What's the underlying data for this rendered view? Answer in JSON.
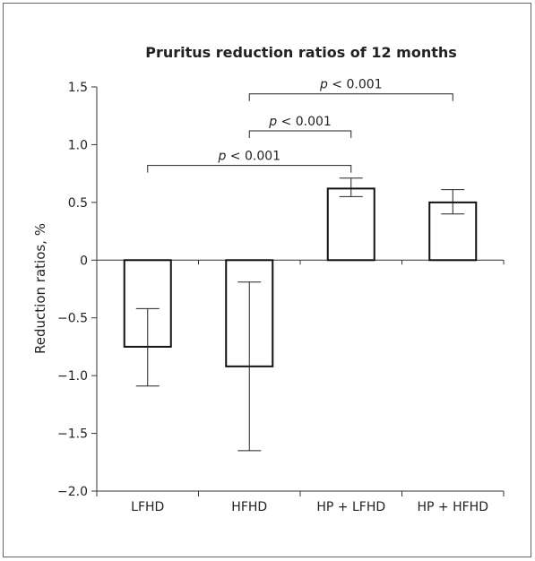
{
  "chart_data": {
    "type": "bar",
    "title": "Pruritus reduction ratios of 12 months",
    "xlabel": "",
    "ylabel": "Reduction ratios, %",
    "ylim": [
      -2.0,
      1.5
    ],
    "yticks": [
      1.5,
      1.0,
      0.5,
      0,
      -0.5,
      -1.0,
      -1.5,
      -2.0
    ],
    "ytick_labels": [
      "1.5",
      "1.0",
      "0.5",
      "0",
      "−0.5",
      "−1.0",
      "−1.5",
      "−2.0"
    ],
    "categories": [
      "LFHD",
      "HFHD",
      "HP + LFHD",
      "HP + HFHD"
    ],
    "values": [
      -0.75,
      -0.92,
      0.62,
      0.5
    ],
    "error_low": [
      -1.09,
      -1.65,
      0.55,
      0.4
    ],
    "error_high": [
      -0.42,
      -0.19,
      0.71,
      0.61
    ],
    "grid": false,
    "significance": [
      {
        "from": 0,
        "to": 2,
        "y": 0.82,
        "p_symbol": "p",
        "relation": "< 0.001"
      },
      {
        "from": 1,
        "to": 2,
        "y": 1.12,
        "p_symbol": "p",
        "relation": "< 0.001"
      },
      {
        "from": 1,
        "to": 3,
        "y": 1.44,
        "p_symbol": "p",
        "relation": "< 0.001"
      }
    ],
    "colors": {
      "bar_fill": "#ffffff",
      "bar_stroke": "#111111",
      "axis": "#333333",
      "frame": "#666666"
    }
  }
}
